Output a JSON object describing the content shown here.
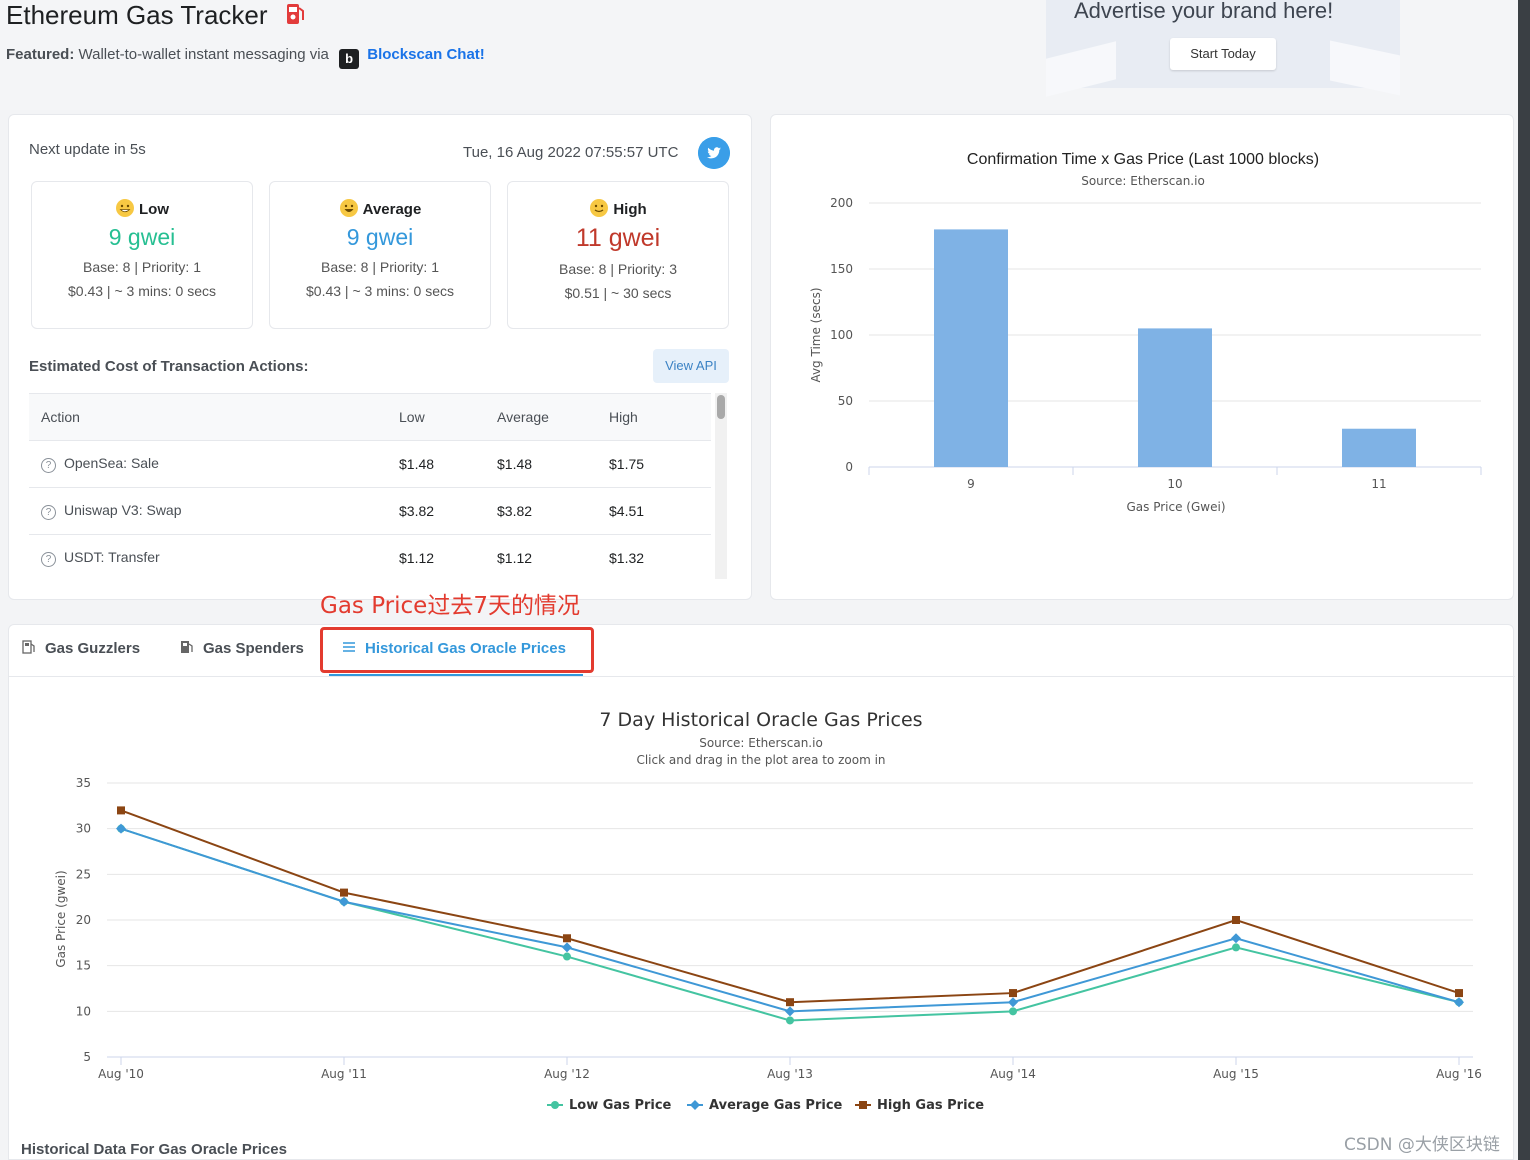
{
  "header": {
    "title": "Ethereum Gas Tracker",
    "featured_label": "Featured:",
    "featured_text": "Wallet-to-wallet instant messaging via",
    "featured_logo": "b",
    "featured_link": "Blockscan Chat!"
  },
  "ad": {
    "text": "Advertise your brand here!",
    "button": "Start Today"
  },
  "tracker": {
    "next_update": "Next update in 5s",
    "timestamp": "Tue, 16 Aug 2022 07:55:57 UTC",
    "twitter_icon": "twitter-icon",
    "levels": {
      "low": {
        "label": "Low",
        "price": "9 gwei",
        "base": "Base: 8 | Priority: 1",
        "cost": "$0.43 | ~ 3 mins: 0 secs"
      },
      "average": {
        "label": "Average",
        "price": "9 gwei",
        "base": "Base: 8 | Priority: 1",
        "cost": "$0.43 | ~ 3 mins: 0 secs"
      },
      "high": {
        "label": "High",
        "price": "11 gwei",
        "base": "Base: 8 | Priority: 3",
        "cost": "$0.51 | ~ 30 secs"
      }
    }
  },
  "estimated": {
    "title": "Estimated Cost of Transaction Actions:",
    "view_api": "View API",
    "columns": [
      "Action",
      "Low",
      "Average",
      "High"
    ],
    "rows": [
      {
        "action": "OpenSea: Sale",
        "low": "$1.48",
        "avg": "$1.48",
        "high": "$1.75"
      },
      {
        "action": "Uniswap V3: Swap",
        "low": "$3.82",
        "avg": "$3.82",
        "high": "$4.51"
      },
      {
        "action": "USDT: Transfer",
        "low": "$1.12",
        "avg": "$1.12",
        "high": "$1.32"
      }
    ]
  },
  "annotation": {
    "text": "Gas Price过去7天的情况"
  },
  "tabs": {
    "gas_guzzlers": "Gas Guzzlers",
    "gas_spenders": "Gas Spenders",
    "historical": "Historical Gas Oracle Prices"
  },
  "bottom_caption": "Historical Data For Gas Oracle Prices",
  "watermark": "CSDN @大侠区块链",
  "colors": {
    "low": "#44c4a1",
    "average": "#3f98d6",
    "high": "#8b4513",
    "bar": "#7fb2e5",
    "accent": "#3498db",
    "annotation": "#e33b2f"
  },
  "chart_data": [
    {
      "type": "bar",
      "title": "Confirmation Time x Gas Price (Last 1000 blocks)",
      "subtitle": "Source: Etherscan.io",
      "xlabel": "Gas Price (Gwei)",
      "ylabel": "Avg Time (secs)",
      "categories": [
        "9",
        "10",
        "11"
      ],
      "values": [
        180,
        105,
        29
      ],
      "ylim": [
        0,
        200
      ],
      "yticks": [
        0,
        50,
        100,
        150,
        200
      ],
      "grid": true
    },
    {
      "type": "line",
      "title": "7 Day Historical Oracle Gas Prices",
      "subtitle": "Source: Etherscan.io",
      "subtitle2": "Click and drag in the plot area to zoom in",
      "ylabel": "Gas Price (gwei)",
      "categories": [
        "Aug '10",
        "Aug '11",
        "Aug '12",
        "Aug '13",
        "Aug '14",
        "Aug '15",
        "Aug '16"
      ],
      "ylim": [
        5,
        35
      ],
      "yticks": [
        5,
        10,
        15,
        20,
        25,
        30,
        35
      ],
      "legend": "bottom-center",
      "series": [
        {
          "name": "Low Gas Price",
          "values": [
            30,
            22,
            16,
            9,
            10,
            17,
            11
          ]
        },
        {
          "name": "Average Gas Price",
          "values": [
            30,
            22,
            17,
            10,
            11,
            18,
            11
          ]
        },
        {
          "name": "High Gas Price",
          "values": [
            32,
            23,
            18,
            11,
            12,
            20,
            12
          ]
        }
      ]
    }
  ]
}
